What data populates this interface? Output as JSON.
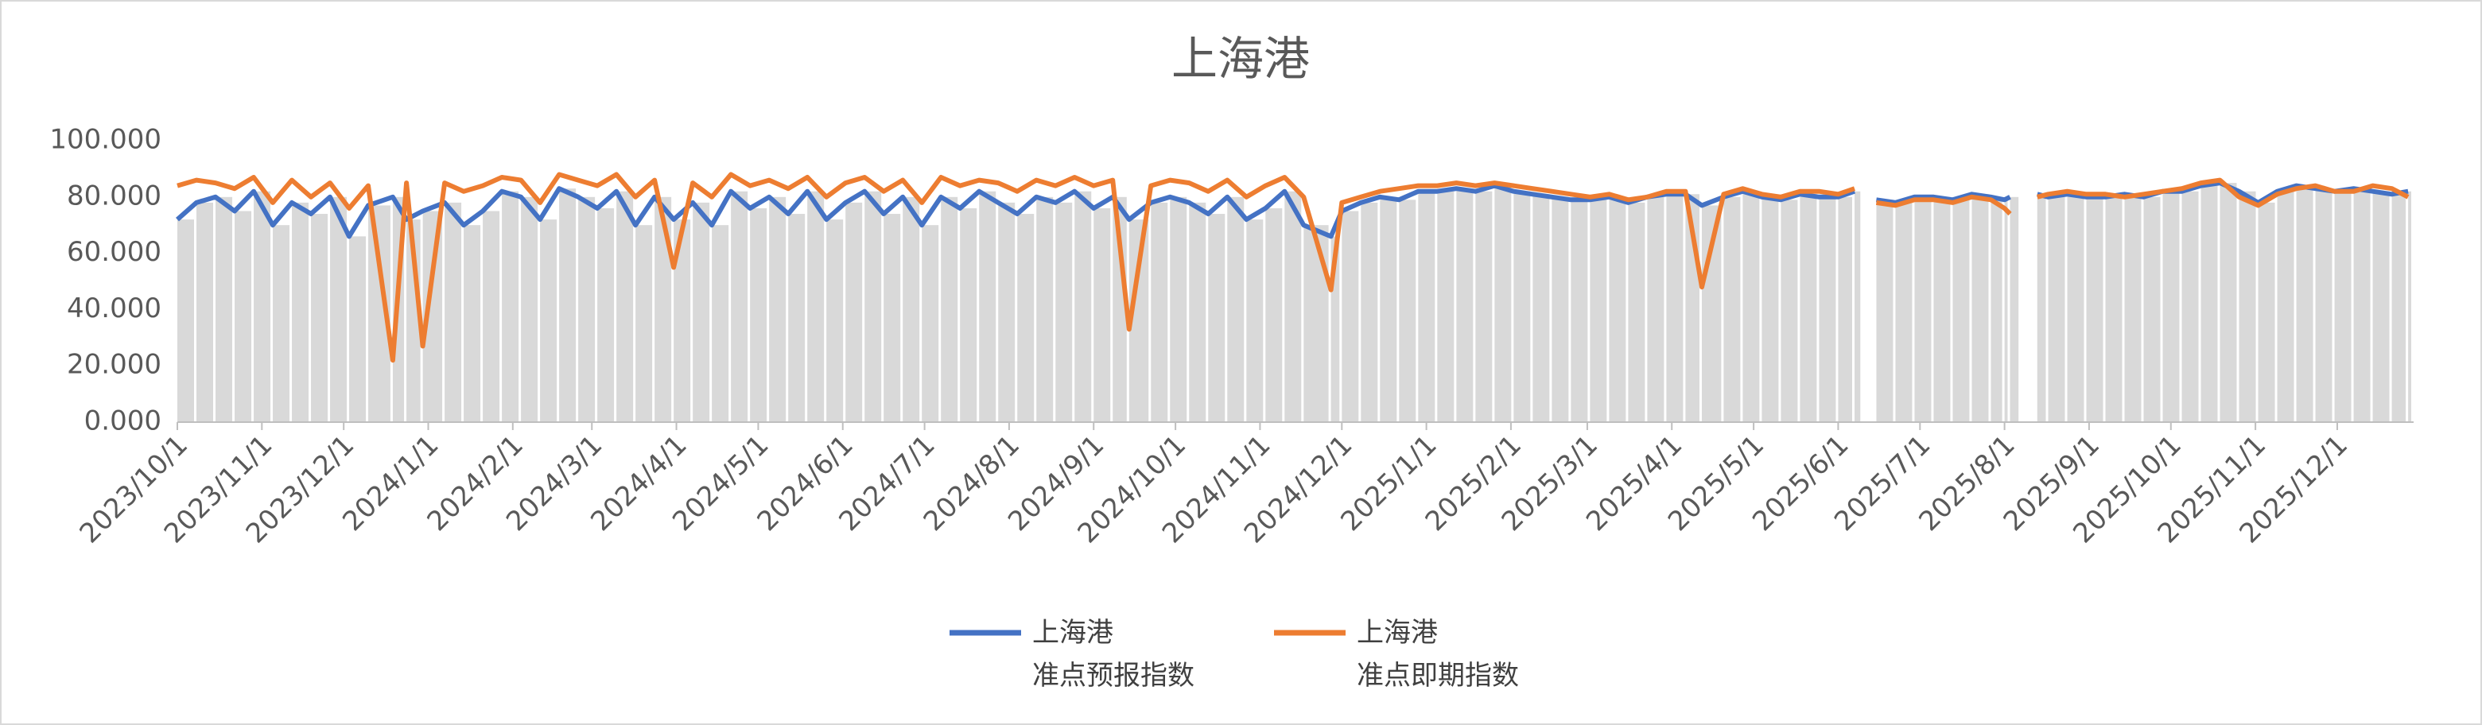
{
  "chart_data": {
    "type": "line",
    "title": "上海港",
    "x": [
      "2023/10/1",
      "2023/10/8",
      "2023/10/15",
      "2023/10/22",
      "2023/10/29",
      "2023/11/5",
      "2023/11/12",
      "2023/11/19",
      "2023/11/26",
      "2023/12/3",
      "2023/12/10",
      "2023/12/19",
      "2023/12/24",
      "2023/12/30",
      "2024/1/7",
      "2024/1/14",
      "2024/1/21",
      "2024/1/28",
      "2024/2/4",
      "2024/2/11",
      "2024/2/18",
      "2024/2/25",
      "2024/3/3",
      "2024/3/10",
      "2024/3/17",
      "2024/3/24",
      "2024/3/31",
      "2024/4/7",
      "2024/4/14",
      "2024/4/21",
      "2024/4/28",
      "2024/5/5",
      "2024/5/12",
      "2024/5/19",
      "2024/5/26",
      "2024/6/2",
      "2024/6/9",
      "2024/6/16",
      "2024/6/23",
      "2024/6/30",
      "2024/7/7",
      "2024/7/14",
      "2024/7/21",
      "2024/7/28",
      "2024/8/4",
      "2024/8/11",
      "2024/8/18",
      "2024/8/25",
      "2024/9/1",
      "2024/9/8",
      "2024/9/14",
      "2024/9/22",
      "2024/9/29",
      "2024/10/6",
      "2024/10/13",
      "2024/10/20",
      "2024/10/27",
      "2024/11/3",
      "2024/11/10",
      "2024/11/17",
      "2024/11/27",
      "2024/12/1",
      "2024/12/8",
      "2024/12/15",
      "2024/12/22",
      "2024/12/29",
      "2025/1/5",
      "2025/1/12",
      "2025/1/19",
      "2025/1/26",
      "2025/2/2",
      "2025/2/9",
      "2025/2/16",
      "2025/2/23",
      "2025/3/2",
      "2025/3/9",
      "2025/3/16",
      "2025/3/23",
      "2025/3/30",
      "2025/4/6",
      "2025/4/12",
      "2025/4/20",
      "2025/4/27",
      "2025/5/4",
      "2025/5/11",
      "2025/5/18",
      "2025/5/25",
      "2025/6/1",
      "2025/6/7",
      "2025/6/10",
      "2025/6/15",
      "2025/6/22",
      "2025/6/29",
      "2025/7/6",
      "2025/7/13",
      "2025/7/20",
      "2025/7/27",
      "2025/8/1",
      "2025/8/3",
      "2025/8/7",
      "2025/8/13",
      "2025/8/17",
      "2025/8/24",
      "2025/8/31",
      "2025/9/7",
      "2025/9/14",
      "2025/9/21",
      "2025/9/28",
      "2025/10/5",
      "2025/10/12",
      "2025/10/19",
      "2025/10/26",
      "2025/11/2",
      "2025/11/9",
      "2025/11/16",
      "2025/11/23",
      "2025/11/30",
      "2025/12/7",
      "2025/12/14",
      "2025/12/21",
      "2025/12/27"
    ],
    "series": [
      {
        "name": "上海港\n准点预报指数",
        "color": "#4472c4",
        "values": [
          72,
          78,
          80,
          75,
          82,
          70,
          78,
          74,
          80,
          66,
          77,
          80,
          72,
          75,
          78,
          70,
          75,
          82,
          80,
          72,
          83,
          80,
          76,
          82,
          70,
          80,
          72,
          78,
          70,
          82,
          76,
          80,
          74,
          82,
          72,
          78,
          82,
          74,
          80,
          70,
          80,
          76,
          82,
          78,
          74,
          80,
          78,
          82,
          76,
          80,
          72,
          78,
          80,
          78,
          74,
          80,
          72,
          76,
          82,
          70,
          66,
          75,
          78,
          80,
          79,
          82,
          82,
          83,
          82,
          84,
          82,
          81,
          80,
          79,
          79,
          80,
          78,
          80,
          81,
          81,
          77,
          80,
          82,
          80,
          79,
          81,
          80,
          80,
          82,
          null,
          79,
          78,
          80,
          80,
          79,
          81,
          80,
          79,
          80,
          null,
          81,
          80,
          81,
          80,
          80,
          81,
          80,
          82,
          82,
          84,
          85,
          82,
          78,
          82,
          84,
          83,
          82,
          83,
          82,
          81,
          82
        ]
      },
      {
        "name": "上海港\n准点即期指数",
        "color": "#ed7d31",
        "values": [
          84,
          86,
          85,
          83,
          87,
          78,
          86,
          80,
          85,
          76,
          84,
          22,
          85,
          27,
          85,
          82,
          84,
          87,
          86,
          78,
          88,
          86,
          84,
          88,
          80,
          86,
          55,
          85,
          80,
          88,
          84,
          86,
          83,
          87,
          80,
          85,
          87,
          82,
          86,
          78,
          87,
          84,
          86,
          85,
          82,
          86,
          84,
          87,
          84,
          86,
          33,
          84,
          86,
          85,
          82,
          86,
          80,
          84,
          87,
          80,
          47,
          78,
          80,
          82,
          83,
          84,
          84,
          85,
          84,
          85,
          84,
          83,
          82,
          81,
          80,
          81,
          79,
          80,
          82,
          82,
          48,
          81,
          83,
          81,
          80,
          82,
          82,
          81,
          83,
          null,
          78,
          77,
          79,
          79,
          78,
          80,
          79,
          76,
          74,
          null,
          80,
          81,
          82,
          81,
          81,
          80,
          81,
          82,
          83,
          85,
          86,
          80,
          77,
          81,
          83,
          84,
          82,
          82,
          84,
          83,
          80
        ]
      }
    ],
    "bar_color": "#d9d9d9",
    "xlim": [
      "2023/10/1",
      "2025/12/29"
    ],
    "xticks": [
      "2023/10/1",
      "2023/11/1",
      "2023/12/1",
      "2024/1/1",
      "2024/2/1",
      "2024/3/1",
      "2024/4/1",
      "2024/5/1",
      "2024/6/1",
      "2024/7/1",
      "2024/8/1",
      "2024/9/1",
      "2024/10/1",
      "2024/11/1",
      "2024/12/1",
      "2025/1/1",
      "2025/2/1",
      "2025/3/1",
      "2025/4/1",
      "2025/5/1",
      "2025/6/1",
      "2025/7/1",
      "2025/8/1",
      "2025/9/1",
      "2025/10/1",
      "2025/11/1",
      "2025/12/1"
    ],
    "ylim": [
      0,
      100
    ],
    "yticks": [
      {
        "value": 0,
        "label": "0.000"
      },
      {
        "value": 20,
        "label": "20.000"
      },
      {
        "value": 40,
        "label": "40.000"
      },
      {
        "value": 60,
        "label": "60.000"
      },
      {
        "value": 80,
        "label": "80.000"
      },
      {
        "value": 100,
        "label": "100.000"
      }
    ],
    "grid": false,
    "legend": "bottom"
  }
}
